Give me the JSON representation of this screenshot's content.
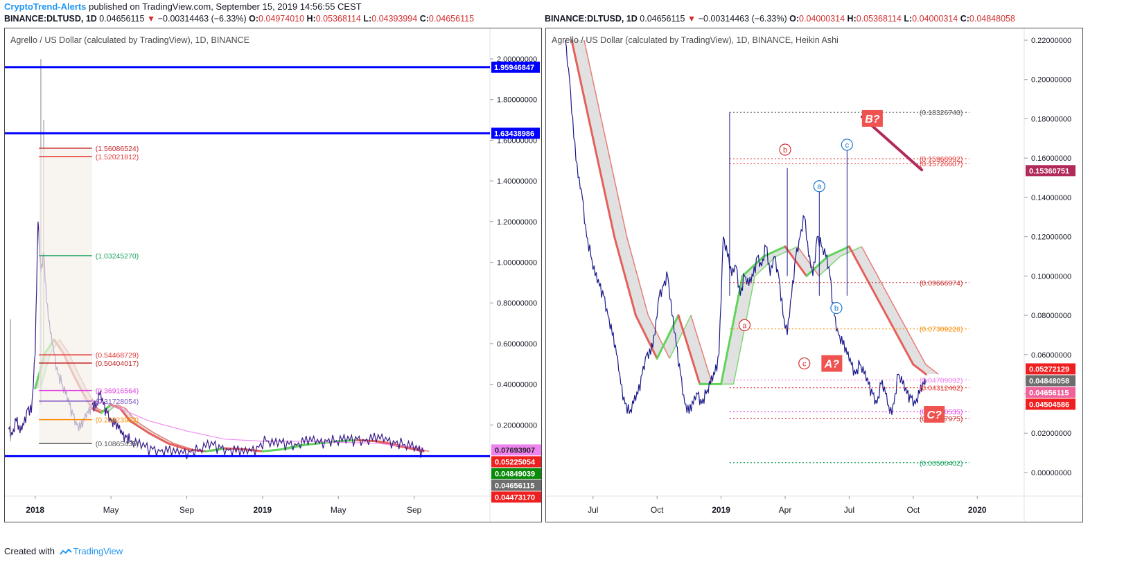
{
  "header": {
    "author": "CryptoTrend-Alerts",
    "published": "published on TradingView.com, September 15, 2019 14:56:55 CEST"
  },
  "left_ohlc": {
    "symbol": "BINANCE:DLTUSD, 1D",
    "last": "0.04656115",
    "arrow": "▼",
    "change": "−0.00314463 (−6.33%)",
    "o_label": "O:",
    "o": "0.04974010",
    "h_label": "H:",
    "h": "0.05368114",
    "l_label": "L:",
    "l": "0.04393994",
    "c_label": "C:",
    "c": "0.04656115"
  },
  "right_ohlc": {
    "symbol": "BINANCE:DLTUSD, 1D",
    "last": "0.04656115",
    "arrow": "▼",
    "change": "−0.00314463 (−6.33%)",
    "o_label": "O:",
    "o": "0.04000314",
    "h_label": "H:",
    "h": "0.05368114",
    "l_label": "L:",
    "l": "0.04000314",
    "c_label": "C:",
    "c": "0.04848058"
  },
  "footer": {
    "created": "Created with",
    "brand": "TradingView"
  },
  "chart_data": [
    {
      "type": "line",
      "title": "Agrello / US Dollar (calculated by TradingView), 1D, BINANCE",
      "xlabel": "",
      "ylabel": "",
      "ylim": [
        -0.15,
        2.15
      ],
      "y_ticks": [
        "2.00000000",
        "1.80000000",
        "1.60000000",
        "1.40000000",
        "1.20000000",
        "1.00000000",
        "0.80000000",
        "0.60000000",
        "0.40000000",
        "0.20000000"
      ],
      "y_tick_values": [
        2.0,
        1.8,
        1.6,
        1.4,
        1.2,
        1.0,
        0.8,
        0.6,
        0.4,
        0.2
      ],
      "x_ticks": [
        {
          "label": "2018",
          "t": 0
        },
        {
          "label": "May",
          "t": 4
        },
        {
          "label": "Sep",
          "t": 8
        },
        {
          "label": "2019",
          "t": 12
        },
        {
          "label": "May",
          "t": 16
        },
        {
          "label": "Sep",
          "t": 20
        }
      ],
      "x_range": [
        -1.6,
        24
      ],
      "grid": true,
      "price_series": {
        "name": "DLTUSD",
        "color": "#3a1d8a",
        "t": [
          -1.4,
          -1.2,
          -1.0,
          -0.8,
          -0.6,
          -0.4,
          -0.2,
          0,
          0.15,
          0.3,
          0.45,
          0.6,
          0.8,
          1.0,
          1.2,
          1.4,
          1.6,
          1.8,
          2.0,
          2.2,
          2.4,
          2.6,
          2.8,
          3.0,
          3.2,
          3.4,
          3.6,
          3.8,
          4.0,
          4.2,
          4.4,
          4.6,
          4.8,
          5.0,
          5.4,
          5.8,
          6.2,
          6.6,
          7.0,
          7.4,
          7.8,
          8.2,
          8.6,
          9.0,
          9.4,
          9.8,
          10.2,
          10.6,
          11.0,
          11.4,
          11.8,
          12.2,
          12.6,
          13.0,
          13.4,
          13.8,
          14.2,
          14.6,
          15.0,
          15.4,
          15.8,
          16.2,
          16.6,
          17.0,
          17.4,
          17.8,
          18.2,
          18.6,
          19.0,
          19.4,
          19.8,
          20.2,
          20.5
        ],
        "values": [
          0.18,
          0.15,
          0.22,
          0.16,
          0.2,
          0.28,
          0.26,
          0.55,
          1.2,
          0.95,
          1.05,
          0.8,
          0.65,
          0.55,
          0.45,
          0.4,
          0.35,
          0.3,
          0.25,
          0.2,
          0.18,
          0.22,
          0.26,
          0.3,
          0.28,
          0.35,
          0.3,
          0.26,
          0.22,
          0.2,
          0.18,
          0.15,
          0.14,
          0.12,
          0.1,
          0.09,
          0.08,
          0.07,
          0.065,
          0.06,
          0.06,
          0.065,
          0.07,
          0.09,
          0.1,
          0.085,
          0.075,
          0.065,
          0.06,
          0.07,
          0.09,
          0.12,
          0.1,
          0.11,
          0.105,
          0.1,
          0.11,
          0.12,
          0.11,
          0.12,
          0.115,
          0.12,
          0.125,
          0.13,
          0.12,
          0.125,
          0.13,
          0.12,
          0.11,
          0.1,
          0.09,
          0.075,
          0.07
        ]
      },
      "wicks": [
        {
          "t": -1.3,
          "low": 0.12,
          "high": 0.72
        },
        {
          "t": 0.3,
          "low": 0.3,
          "high": 2.0
        },
        {
          "t": 0.45,
          "low": 0.5,
          "high": 1.7
        }
      ],
      "ribbon_series": {
        "name": "MA ribbon",
        "up_color": "#5fd35a",
        "down_color": "#e5605a",
        "t": [
          0,
          0.5,
          1,
          1.5,
          2,
          2.5,
          3,
          3.5,
          4,
          4.5,
          5,
          6,
          7,
          8,
          9,
          10,
          11,
          12,
          13,
          14,
          15,
          16,
          17,
          18,
          19,
          20,
          20.5
        ],
        "values": [
          0.38,
          0.55,
          0.62,
          0.55,
          0.45,
          0.36,
          0.28,
          0.26,
          0.3,
          0.28,
          0.22,
          0.16,
          0.11,
          0.08,
          0.07,
          0.085,
          0.08,
          0.07,
          0.08,
          0.1,
          0.11,
          0.12,
          0.125,
          0.12,
          0.1,
          0.08,
          0.07
        ]
      },
      "ma_series": {
        "name": "slow MA",
        "color": "#f08cf0",
        "t": [
          2.5,
          4,
          6,
          8,
          10,
          12,
          14,
          16,
          18,
          20,
          20.5
        ],
        "values": [
          0.33,
          0.3,
          0.22,
          0.17,
          0.13,
          0.12,
          0.12,
          0.115,
          0.11,
          0.09,
          0.085
        ]
      },
      "horizontal_lines": [
        {
          "value": 1.95946847,
          "label": "1.95946847",
          "color": "#0000ff"
        },
        {
          "value": 1.63438986,
          "label": "1.63438986",
          "color": "#0000ff"
        },
        {
          "value": 0.04656115,
          "label": "",
          "color": "#0000ff"
        }
      ],
      "fib_levels": [
        {
          "value": 1.56086524,
          "label": "(1.56086524)",
          "color": "#c62828"
        },
        {
          "value": 1.52021812,
          "label": "(1.52021812)",
          "color": "#e53935"
        },
        {
          "value": 1.0324527,
          "label": "(1.03245270)",
          "color": "#16a05c"
        },
        {
          "value": 0.54468729,
          "label": "(0.54468729)",
          "color": "#e53935"
        },
        {
          "value": 0.50404017,
          "label": "(0.50404017)",
          "color": "#c62828"
        },
        {
          "value": 0.36916564,
          "label": "(0.36916564)",
          "color": "#e040e0"
        },
        {
          "value": 0.31728054,
          "label": "(0.31728054)",
          "color": "#7e57c2"
        },
        {
          "value": 0.22623953,
          "label": "(0.22623953)",
          "color": "#fb8c00"
        },
        {
          "value": 0.10865435,
          "label": "(0.10865435)",
          "color": "#555555"
        }
      ],
      "fib_range_t": [
        0.2,
        3.0
      ],
      "price_labels": [
        {
          "value": 0.07693907,
          "label": "0.07693907",
          "bg": "#ee82ee",
          "fg": "#222222"
        },
        {
          "value": 0.05225054,
          "label": "0.05225054",
          "bg": "#ef1f1f",
          "fg": "#ffffff"
        },
        {
          "value": 0.04849039,
          "label": "0.04849039",
          "bg": "#0a8a0a",
          "fg": "#ffffff"
        },
        {
          "value": 0.04656115,
          "label": "0.04656115",
          "bg": "#6d6d6d",
          "fg": "#ffffff"
        },
        {
          "value": 0.0447317,
          "label": "0.04473170",
          "bg": "#ef1f1f",
          "fg": "#ffffff"
        }
      ]
    },
    {
      "type": "line",
      "title": "Agrello / US Dollar (calculated by TradingView), 1D, BINANCE, Heikin Ashi",
      "xlabel": "",
      "ylabel": "",
      "ylim": [
        -0.012,
        0.226
      ],
      "y_ticks": [
        "0.22000000",
        "0.20000000",
        "0.18000000",
        "0.16000000",
        "0.14000000",
        "0.12000000",
        "0.10000000",
        "0.08000000",
        "0.06000000",
        "0.04000000",
        "0.02000000",
        "0.00000000"
      ],
      "y_tick_values": [
        0.22,
        0.2,
        0.18,
        0.16,
        0.14,
        0.12,
        0.1,
        0.08,
        0.06,
        0.04,
        0.02,
        0.0
      ],
      "x_ticks": [
        {
          "label": "Jul",
          "t": 0
        },
        {
          "label": "Oct",
          "t": 3
        },
        {
          "label": "2019",
          "t": 6
        },
        {
          "label": "Apr",
          "t": 9
        },
        {
          "label": "Jul",
          "t": 12
        },
        {
          "label": "Oct",
          "t": 15
        },
        {
          "label": "2020",
          "t": 18
        }
      ],
      "x_range": [
        -2.2,
        20.2
      ],
      "grid": true,
      "price_series": {
        "name": "DLTUSD",
        "color": "#1a1a8a",
        "t": [
          -1.3,
          -1.1,
          -0.9,
          -0.7,
          -0.5,
          -0.3,
          -0.1,
          0.1,
          0.3,
          0.5,
          0.7,
          0.9,
          1.1,
          1.3,
          1.5,
          1.7,
          1.9,
          2.1,
          2.3,
          2.5,
          2.7,
          2.9,
          3.1,
          3.3,
          3.5,
          3.7,
          3.9,
          4.1,
          4.3,
          4.5,
          4.7,
          4.9,
          5.1,
          5.3,
          5.5,
          5.7,
          5.9,
          6.1,
          6.3,
          6.5,
          6.7,
          6.9,
          7.1,
          7.3,
          7.5,
          7.7,
          7.9,
          8.1,
          8.3,
          8.5,
          8.7,
          8.9,
          9.1,
          9.3,
          9.5,
          9.7,
          9.9,
          10.1,
          10.3,
          10.5,
          10.7,
          10.9,
          11.1,
          11.3,
          11.5,
          11.7,
          11.9,
          12.1,
          12.3,
          12.5,
          12.7,
          12.9,
          13.1,
          13.3,
          13.5,
          13.7,
          13.9,
          14.1,
          14.3,
          14.5,
          14.7,
          14.9,
          15.1,
          15.3,
          15.5,
          15.6
        ],
        "values": [
          0.22,
          0.2,
          0.17,
          0.15,
          0.14,
          0.12,
          0.11,
          0.1,
          0.095,
          0.09,
          0.08,
          0.07,
          0.06,
          0.045,
          0.035,
          0.03,
          0.035,
          0.04,
          0.05,
          0.06,
          0.06,
          0.07,
          0.09,
          0.095,
          0.1,
          0.08,
          0.065,
          0.05,
          0.035,
          0.03,
          0.035,
          0.04,
          0.035,
          0.04,
          0.045,
          0.05,
          0.06,
          0.12,
          0.11,
          0.1,
          0.105,
          0.09,
          0.1,
          0.095,
          0.1,
          0.11,
          0.105,
          0.115,
          0.1,
          0.11,
          0.1,
          0.08,
          0.07,
          0.09,
          0.11,
          0.12,
          0.13,
          0.11,
          0.1,
          0.12,
          0.115,
          0.11,
          0.1,
          0.08,
          0.07,
          0.065,
          0.06,
          0.055,
          0.05,
          0.055,
          0.05,
          0.045,
          0.04,
          0.035,
          0.045,
          0.04,
          0.03,
          0.035,
          0.05,
          0.045,
          0.04,
          0.038,
          0.035,
          0.04,
          0.045,
          0.046
        ]
      },
      "wicks": [
        {
          "t": 6.4,
          "low": 0.09,
          "high": 0.1833
        },
        {
          "t": 9.1,
          "low": 0.1,
          "high": 0.155
        },
        {
          "t": 10.6,
          "low": 0.09,
          "high": 0.148
        },
        {
          "t": 11.9,
          "low": 0.09,
          "high": 0.165
        }
      ],
      "ribbon_series": {
        "name": "MA ribbon",
        "up_color": "#5fd35a",
        "down_color": "#e5605a",
        "t": [
          -1.0,
          0,
          1,
          2,
          3,
          4,
          5,
          6,
          7,
          8,
          9,
          10,
          11,
          12,
          13,
          14,
          15,
          15.6
        ],
        "values": [
          0.22,
          0.17,
          0.12,
          0.08,
          0.058,
          0.08,
          0.045,
          0.045,
          0.1,
          0.11,
          0.115,
          0.1,
          0.11,
          0.115,
          0.095,
          0.075,
          0.055,
          0.05
        ]
      },
      "trend_line": {
        "color": "#b02a5a",
        "t0": 12.6,
        "v0": 0.181,
        "t1": 15.4,
        "v1": 0.154
      },
      "dotted_levels": [
        {
          "value": 0.1832674,
          "label": "(0.18326740)",
          "color": "#555555"
        },
        {
          "value": 0.15968992,
          "label": "(0.15968992)",
          "color": "#e53935"
        },
        {
          "value": 0.15726607,
          "label": "(0.15726607)",
          "color": "#e53935"
        },
        {
          "value": 0.09666974,
          "label": "(0.09666974)",
          "color": "#c62828"
        },
        {
          "value": 0.07309226,
          "label": "(0.07309226)",
          "color": "#fb8c00"
        },
        {
          "value": 0.04709092,
          "label": "(0.04709092)",
          "color": "#ee82ee"
        },
        {
          "value": 0.04312462,
          "label": "(0.04312462)",
          "color": "#e53935"
        },
        {
          "value": 0.03100535,
          "label": "(0.03100535)",
          "color": "#e040e0"
        },
        {
          "value": 0.02747975,
          "label": "(0.02747975)",
          "color": "#c62828"
        },
        {
          "value": 0.00500402,
          "label": "(0.00500402)",
          "color": "#16a05c"
        }
      ],
      "dotted_range_t": [
        6.4,
        15.1
      ],
      "wave_labels": [
        {
          "text": "a",
          "t": 7.1,
          "value": 0.075,
          "color": "#d32f2f",
          "style": "circle"
        },
        {
          "text": "b",
          "t": 9.0,
          "value": 0.1643,
          "color": "#d32f2f",
          "style": "circle"
        },
        {
          "text": "c",
          "t": 9.9,
          "value": 0.0555,
          "color": "#d32f2f",
          "style": "circle"
        },
        {
          "text": "a",
          "t": 10.6,
          "value": 0.1457,
          "color": "#1976d2",
          "style": "circle"
        },
        {
          "text": "b",
          "t": 11.4,
          "value": 0.0837,
          "color": "#1976d2",
          "style": "circle"
        },
        {
          "text": "c",
          "t": 11.9,
          "value": 0.1668,
          "color": "#1976d2",
          "style": "circle"
        },
        {
          "text": "B?",
          "t": 12.6,
          "value": 0.1802,
          "color": "#ef5350",
          "style": "box"
        },
        {
          "text": "A?",
          "t": 10.7,
          "value": 0.0555,
          "color": "#ef5350",
          "style": "box"
        },
        {
          "text": "C?",
          "t": 15.5,
          "value": 0.0296,
          "color": "#ef5350",
          "style": "box"
        }
      ],
      "price_labels": [
        {
          "value": 0.15360751,
          "label": "0.15360751",
          "bg": "#b02a5a",
          "fg": "#ffffff"
        },
        {
          "value": 0.05272129,
          "label": "0.05272129",
          "bg": "#ef1f1f",
          "fg": "#ffffff"
        },
        {
          "value": 0.04848058,
          "label": "0.04848058",
          "bg": "#6d6d6d",
          "fg": "#ffffff"
        },
        {
          "value": 0.04656115,
          "label": "0.04656115",
          "bg": "#f0629a",
          "fg": "#ffffff"
        },
        {
          "value": 0.04504586,
          "label": "0.04504586",
          "bg": "#ef1f1f",
          "fg": "#ffffff"
        }
      ]
    }
  ]
}
